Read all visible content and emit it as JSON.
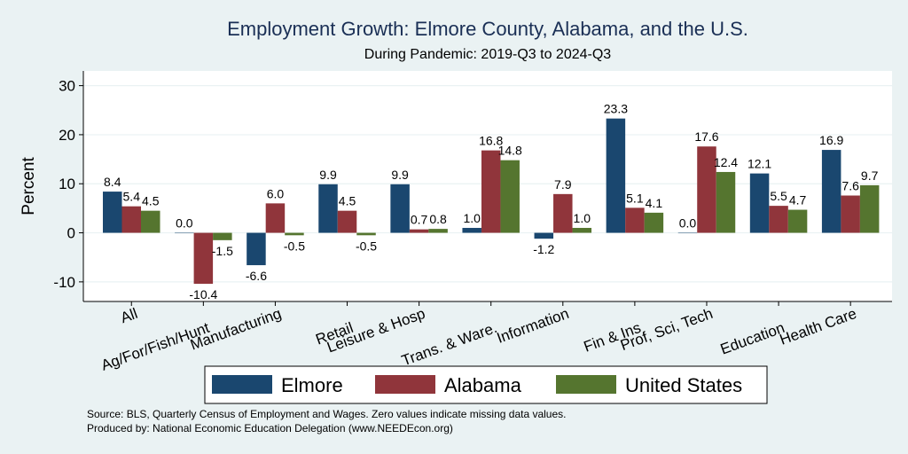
{
  "chart_data": {
    "type": "bar",
    "title": "Employment Growth: Elmore County, Alabama, and the U.S.",
    "subtitle": "During Pandemic: 2019-Q3 to 2024-Q3",
    "ylabel": "Percent",
    "ylim": [
      -14,
      33
    ],
    "yticks": [
      -10,
      0,
      10,
      20,
      30
    ],
    "grid": true,
    "legend_position": "bottom",
    "categories": [
      "All",
      "Ag/For/Fish/Hunt",
      "Manufacturing",
      "Retail",
      "Leisure & Hosp",
      "Trans. & Ware.",
      "Information",
      "Fin & Ins",
      "Prof, Sci, Tech",
      "Education",
      "Health Care"
    ],
    "series": [
      {
        "name": "Elmore",
        "color": "#1a476f",
        "values": [
          8.4,
          0.0,
          -6.6,
          9.9,
          9.9,
          1.0,
          -1.2,
          23.3,
          0.0,
          12.1,
          16.9
        ]
      },
      {
        "name": "Alabama",
        "color": "#90353b",
        "values": [
          5.4,
          -10.4,
          6.0,
          4.5,
          0.7,
          16.8,
          7.9,
          5.1,
          17.6,
          5.5,
          7.6
        ]
      },
      {
        "name": "United States",
        "color": "#55752f",
        "values": [
          4.5,
          -1.5,
          -0.5,
          -0.5,
          0.8,
          14.8,
          1.0,
          4.1,
          12.4,
          4.7,
          9.7
        ]
      }
    ]
  },
  "footer": {
    "source": "Source: BLS, Quarterly Census of Employment and Wages. Zero values indicate missing data values.",
    "produced_by": "Produced by: National Economic Education Delegation (www.NEEDEcon.org)"
  }
}
